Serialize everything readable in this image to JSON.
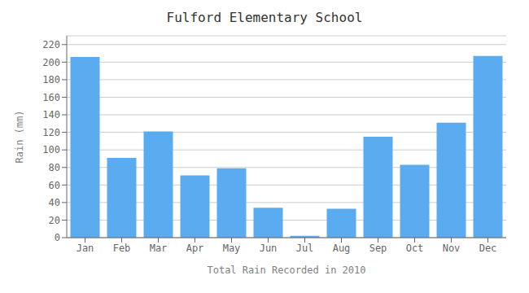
{
  "chart_data": {
    "type": "bar",
    "title": "Fulford Elementary School",
    "xlabel": "Total Rain Recorded in 2010",
    "ylabel": "Rain (mm)",
    "categories": [
      "Jan",
      "Feb",
      "Mar",
      "Apr",
      "May",
      "Jun",
      "Jul",
      "Aug",
      "Sep",
      "Oct",
      "Nov",
      "Dec"
    ],
    "values": [
      206,
      91,
      121,
      71,
      79,
      34,
      2,
      33,
      115,
      83,
      131,
      207
    ],
    "color": "#5aabf0",
    "ylim": [
      0,
      230
    ],
    "yticks": [
      0,
      20,
      40,
      60,
      80,
      100,
      120,
      140,
      160,
      180,
      200,
      220
    ],
    "grid": true
  }
}
